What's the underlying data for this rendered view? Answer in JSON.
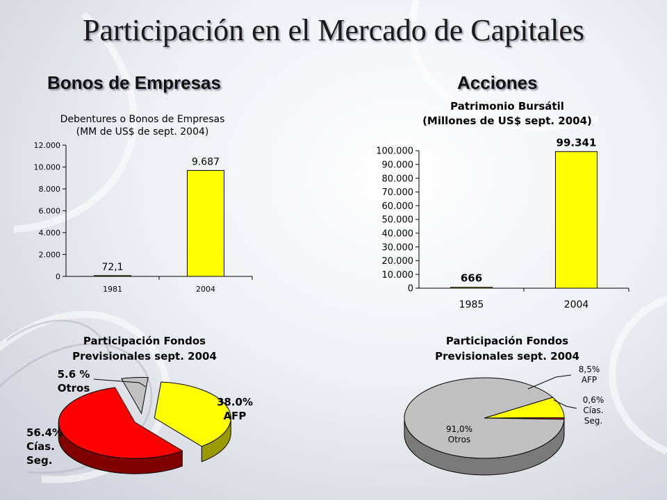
{
  "slide": {
    "title": "Participación en el Mercado de Capitales",
    "left_heading": "Bonos de Empresas",
    "right_heading": "Acciones"
  },
  "colors": {
    "bar": "#ffff00",
    "pie_red": "#ff0000",
    "pie_yellow": "#ffff00",
    "pie_gray": "#c0c0c0"
  },
  "chart_data": [
    {
      "type": "bar",
      "title": [
        "Debentures o Bonos de Empresas",
        "(MM de US$ de sept. 2004)"
      ],
      "categories": [
        "1981",
        "2004"
      ],
      "values": [
        72.1,
        9687
      ],
      "value_labels": [
        "72,1",
        "9.687"
      ],
      "ylim": [
        0,
        12000
      ],
      "yticks": [
        "0",
        "2.000",
        "4.000",
        "6.000",
        "8.000",
        "10.000",
        "12.000"
      ],
      "grid": false
    },
    {
      "type": "bar",
      "title": [
        "Patrimonio Bursátil",
        "(Millones de US$ sept. 2004)"
      ],
      "categories": [
        "1985",
        "2004"
      ],
      "values": [
        666,
        99341
      ],
      "value_labels": [
        "666",
        "99.341"
      ],
      "ylim": [
        0,
        100000
      ],
      "yticks": [
        "0",
        "10.000",
        "20.000",
        "30.000",
        "40.000",
        "50.000",
        "60.000",
        "70.000",
        "80.000",
        "90.000",
        "100.000"
      ],
      "grid": false
    },
    {
      "type": "pie",
      "title": [
        "Participación Fondos",
        "Previsionales sept. 2004"
      ],
      "slices": [
        {
          "label": [
            "38.0%",
            "AFP"
          ],
          "value": 38.0
        },
        {
          "label": [
            "56.4%",
            "Cías.",
            "Seg."
          ],
          "value": 56.4
        },
        {
          "label": [
            "5.6 %",
            "Otros"
          ],
          "value": 5.6
        }
      ]
    },
    {
      "type": "pie",
      "title": [
        "Participación Fondos",
        "Previsionales sept. 2004"
      ],
      "slices": [
        {
          "label": [
            "8,5%",
            "AFP"
          ],
          "value": 8.5
        },
        {
          "label": [
            "0,6%",
            "Cías.",
            "Seg."
          ],
          "value": 0.6
        },
        {
          "label": [
            "91,0%",
            "Otros"
          ],
          "value": 91.0
        }
      ]
    }
  ]
}
